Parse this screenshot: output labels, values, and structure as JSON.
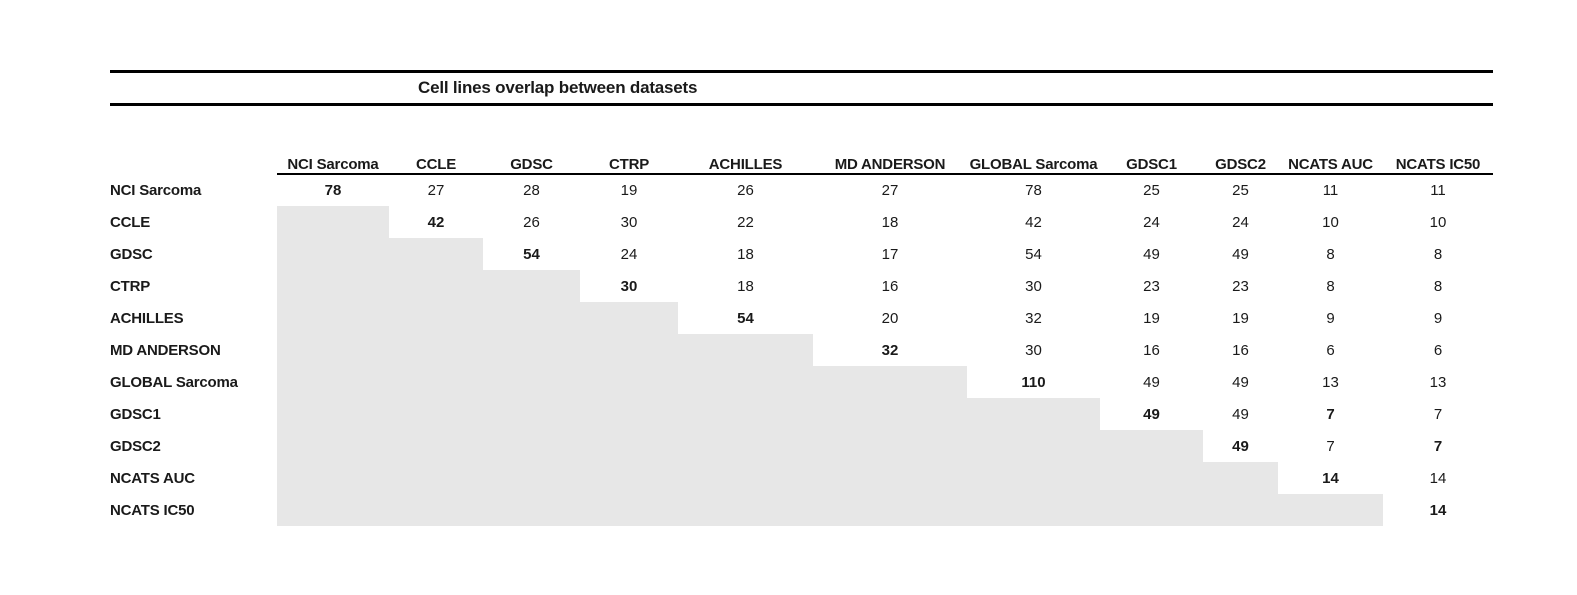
{
  "title": "Cell lines overlap between datasets",
  "colors": {
    "staircase_gray": "#e7e7e7",
    "rule_black": "#000000",
    "text": "#1a1a1a"
  },
  "table": {
    "corner_label": "",
    "columns": [
      "NCI Sarcoma",
      "CCLE",
      "GDSC",
      "CTRP",
      "ACHILLES",
      "MD ANDERSON",
      "GLOBAL Sarcoma",
      "GDSC1",
      "GDSC2",
      "NCATS AUC",
      "NCATS IC50"
    ],
    "rows": [
      {
        "label": "NCI Sarcoma",
        "cells": [
          {
            "v": "78",
            "b": true
          },
          {
            "v": "27",
            "b": false
          },
          {
            "v": "28",
            "b": false
          },
          {
            "v": "19",
            "b": false
          },
          {
            "v": "26",
            "b": false
          },
          {
            "v": "27",
            "b": false
          },
          {
            "v": "78",
            "b": false
          },
          {
            "v": "25",
            "b": false
          },
          {
            "v": "25",
            "b": false
          },
          {
            "v": "11",
            "b": false
          },
          {
            "v": "11",
            "b": false
          }
        ]
      },
      {
        "label": "CCLE",
        "cells": [
          null,
          {
            "v": "42",
            "b": true
          },
          {
            "v": "26",
            "b": false
          },
          {
            "v": "30",
            "b": false
          },
          {
            "v": "22",
            "b": false
          },
          {
            "v": "18",
            "b": false
          },
          {
            "v": "42",
            "b": false
          },
          {
            "v": "24",
            "b": false
          },
          {
            "v": "24",
            "b": false
          },
          {
            "v": "10",
            "b": false
          },
          {
            "v": "10",
            "b": false
          }
        ]
      },
      {
        "label": "GDSC",
        "cells": [
          null,
          null,
          {
            "v": "54",
            "b": true
          },
          {
            "v": "24",
            "b": false
          },
          {
            "v": "18",
            "b": false
          },
          {
            "v": "17",
            "b": false
          },
          {
            "v": "54",
            "b": false
          },
          {
            "v": "49",
            "b": false
          },
          {
            "v": "49",
            "b": false
          },
          {
            "v": "8",
            "b": false
          },
          {
            "v": "8",
            "b": false
          }
        ]
      },
      {
        "label": "CTRP",
        "cells": [
          null,
          null,
          null,
          {
            "v": "30",
            "b": true
          },
          {
            "v": "18",
            "b": false
          },
          {
            "v": "16",
            "b": false
          },
          {
            "v": "30",
            "b": false
          },
          {
            "v": "23",
            "b": false
          },
          {
            "v": "23",
            "b": false
          },
          {
            "v": "8",
            "b": false
          },
          {
            "v": "8",
            "b": false
          }
        ]
      },
      {
        "label": "ACHILLES",
        "cells": [
          null,
          null,
          null,
          null,
          {
            "v": "54",
            "b": true
          },
          {
            "v": "20",
            "b": false
          },
          {
            "v": "32",
            "b": false
          },
          {
            "v": "19",
            "b": false
          },
          {
            "v": "19",
            "b": false
          },
          {
            "v": "9",
            "b": false
          },
          {
            "v": "9",
            "b": false
          }
        ]
      },
      {
        "label": "MD ANDERSON",
        "cells": [
          null,
          null,
          null,
          null,
          null,
          {
            "v": "32",
            "b": true
          },
          {
            "v": "30",
            "b": false
          },
          {
            "v": "16",
            "b": false
          },
          {
            "v": "16",
            "b": false
          },
          {
            "v": "6",
            "b": false
          },
          {
            "v": "6",
            "b": false
          }
        ]
      },
      {
        "label": "GLOBAL Sarcoma",
        "cells": [
          null,
          null,
          null,
          null,
          null,
          null,
          {
            "v": "110",
            "b": true
          },
          {
            "v": "49",
            "b": false
          },
          {
            "v": "49",
            "b": false
          },
          {
            "v": "13",
            "b": false
          },
          {
            "v": "13",
            "b": false
          }
        ]
      },
      {
        "label": "GDSC1",
        "cells": [
          null,
          null,
          null,
          null,
          null,
          null,
          null,
          {
            "v": "49",
            "b": true
          },
          {
            "v": "49",
            "b": false
          },
          {
            "v": "7",
            "b": true
          },
          {
            "v": "7",
            "b": false
          }
        ]
      },
      {
        "label": "GDSC2",
        "cells": [
          null,
          null,
          null,
          null,
          null,
          null,
          null,
          null,
          {
            "v": "49",
            "b": true
          },
          {
            "v": "7",
            "b": false
          },
          {
            "v": "7",
            "b": true
          }
        ]
      },
      {
        "label": "NCATS AUC",
        "cells": [
          null,
          null,
          null,
          null,
          null,
          null,
          null,
          null,
          null,
          {
            "v": "14",
            "b": true
          },
          {
            "v": "14",
            "b": false
          }
        ]
      },
      {
        "label": "NCATS IC50",
        "cells": [
          null,
          null,
          null,
          null,
          null,
          null,
          null,
          null,
          null,
          null,
          {
            "v": "14",
            "b": true
          }
        ]
      }
    ]
  }
}
